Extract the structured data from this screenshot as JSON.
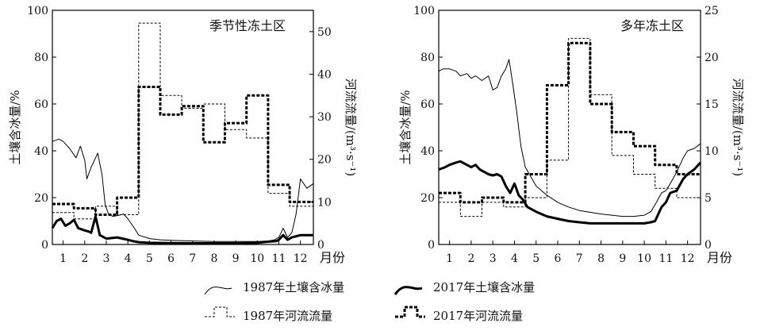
{
  "legend": [
    {
      "label": "1987年土壤含冰量",
      "style": "ice1987"
    },
    {
      "label": "2017年土壤含冰量",
      "style": "ice2017"
    },
    {
      "label": "1987年河流流量",
      "style": "flow1987"
    },
    {
      "label": "2017年河流流量",
      "style": "flow2017"
    }
  ],
  "styles": {
    "ice1987": {
      "color": "#000000",
      "width": 1,
      "dash": ""
    },
    "ice2017": {
      "color": "#000000",
      "width": 3,
      "dash": ""
    },
    "flow1987": {
      "color": "#000000",
      "width": 1,
      "dash": "3,2"
    },
    "flow2017": {
      "color": "#000000",
      "width": 3,
      "dash": "4,2"
    }
  },
  "chart_data": [
    {
      "type": "line",
      "title": "季节性冻土区",
      "xlabel": "月份",
      "ylabel_left": "土壤含冰量/%",
      "ylabel_right": "河流流量/(m³·s⁻¹)",
      "x_ticks": [
        "1",
        "2",
        "3",
        "4",
        "5",
        "6",
        "7",
        "8",
        "9",
        "10",
        "11",
        "12"
      ],
      "xlim": [
        0.5,
        12.6
      ],
      "ylim_left": [
        0,
        100
      ],
      "yticks_left": [
        0,
        20,
        40,
        60,
        80,
        100
      ],
      "ylim_right": [
        0,
        55
      ],
      "yticks_right": [
        0,
        10,
        20,
        30,
        40,
        50
      ],
      "series": [
        {
          "name": "1987年土壤含冰量",
          "axis": "left",
          "kind": "line",
          "style": "ice1987",
          "x": [
            0.5,
            0.8,
            1.0,
            1.3,
            1.6,
            1.8,
            2.0,
            2.1,
            2.3,
            2.4,
            2.6,
            2.8,
            2.95,
            3.1,
            3.3,
            3.6,
            3.8,
            4.0,
            4.3,
            4.5,
            5.0,
            5.5,
            6.0,
            7.0,
            8.0,
            9.0,
            10.0,
            10.5,
            10.8,
            11.0,
            11.2,
            11.4,
            11.6,
            11.8,
            12.0,
            12.3,
            12.6
          ],
          "y": [
            44,
            45,
            44,
            41,
            37,
            42,
            36,
            28,
            33,
            35,
            39,
            30,
            17,
            13,
            12,
            12.5,
            13,
            11,
            7,
            4,
            2.5,
            2,
            1.8,
            1.5,
            1.3,
            1.3,
            1.3,
            1.5,
            2,
            3,
            7,
            3,
            5,
            13,
            28,
            24,
            26
          ]
        },
        {
          "name": "2017年土壤含冰量",
          "axis": "left",
          "kind": "line",
          "style": "ice2017",
          "x": [
            0.5,
            0.7,
            0.9,
            1.1,
            1.3,
            1.5,
            1.7,
            2.0,
            2.2,
            2.3,
            2.5,
            2.7,
            3.0,
            3.5,
            4.0,
            4.2,
            4.5,
            5.0,
            6.0,
            7.0,
            8.0,
            9.0,
            10.0,
            10.5,
            10.9,
            11.0,
            11.2,
            11.4,
            11.6,
            11.8,
            12.0,
            12.6
          ],
          "y": [
            7,
            10,
            11,
            8,
            9,
            10.5,
            7,
            6,
            5.5,
            5,
            12,
            4,
            2.5,
            3,
            2,
            1.5,
            1,
            0.7,
            0.6,
            0.5,
            0.5,
            0.5,
            0.7,
            1.2,
            1.5,
            2,
            4,
            2,
            3,
            3.5,
            4,
            4
          ]
        },
        {
          "name": "1987年河流流量",
          "axis": "right",
          "kind": "step",
          "style": "flow1987",
          "edges": [
            0.5,
            1.5,
            2.5,
            3.5,
            4.5,
            5.5,
            6.5,
            7.5,
            8.5,
            9.5,
            10.5,
            11.5,
            12.6
          ],
          "values": [
            7.5,
            6,
            9,
            7,
            52,
            35,
            32,
            33,
            27,
            25,
            12,
            9
          ]
        },
        {
          "name": "2017年河流流量",
          "axis": "right",
          "kind": "step",
          "style": "flow2017",
          "edges": [
            0.5,
            1.5,
            2.5,
            3.5,
            4.5,
            5.5,
            6.5,
            7.5,
            8.5,
            9.5,
            10.5,
            11.5,
            12.6
          ],
          "values": [
            9.5,
            8.5,
            7,
            11,
            37,
            30.5,
            32.5,
            24,
            28.5,
            35,
            14,
            10
          ]
        }
      ]
    },
    {
      "type": "line",
      "title": "多年冻土区",
      "xlabel": "月份",
      "ylabel_left": "土壤含冰量/%",
      "ylabel_right": "河流流量/(m³·s⁻¹)",
      "x_ticks": [
        "1",
        "2",
        "3",
        "4",
        "5",
        "6",
        "7",
        "8",
        "9",
        "10",
        "11",
        "12"
      ],
      "xlim": [
        0.5,
        12.6
      ],
      "ylim_left": [
        0,
        100
      ],
      "yticks_left": [
        0,
        20,
        40,
        60,
        80,
        100
      ],
      "ylim_right": [
        0,
        25
      ],
      "yticks_right": [
        0,
        5,
        10,
        15,
        20,
        25
      ],
      "series": [
        {
          "name": "1987年土壤含冰量",
          "axis": "left",
          "kind": "line",
          "style": "ice1987",
          "x": [
            0.5,
            0.7,
            1.0,
            1.3,
            1.5,
            1.8,
            2.0,
            2.2,
            2.5,
            2.8,
            3.0,
            3.2,
            3.4,
            3.6,
            3.75,
            3.9,
            4.1,
            4.3,
            4.5,
            5.0,
            5.5,
            6.0,
            6.5,
            7.0,
            8.0,
            9.0,
            9.5,
            10.0,
            10.3,
            10.5,
            10.8,
            11.0,
            11.2,
            11.5,
            11.8,
            12.0,
            12.3,
            12.6
          ],
          "y": [
            74,
            75,
            75,
            74,
            72,
            73,
            71,
            72,
            70,
            72,
            66,
            67,
            72,
            75,
            79,
            70,
            57,
            42,
            33,
            25,
            21,
            18,
            16,
            14.5,
            13,
            12,
            12,
            12.5,
            14,
            17,
            22,
            23,
            26,
            31,
            37,
            40,
            41,
            43
          ]
        },
        {
          "name": "2017年土壤含冰量",
          "axis": "left",
          "kind": "line",
          "style": "ice2017",
          "x": [
            0.5,
            0.8,
            1.0,
            1.3,
            1.5,
            1.8,
            2.0,
            2.2,
            2.4,
            2.6,
            2.8,
            3.0,
            3.2,
            3.4,
            3.6,
            3.8,
            4.0,
            4.2,
            4.4,
            4.6,
            5.0,
            5.5,
            6.0,
            6.5,
            7.0,
            7.5,
            8.0,
            9.0,
            10.0,
            10.3,
            10.5,
            10.8,
            11.0,
            11.2,
            11.5,
            11.8,
            12.0,
            12.3,
            12.6
          ],
          "y": [
            32,
            33,
            34,
            35,
            35.5,
            34,
            33,
            34,
            32,
            31,
            30,
            29.5,
            30,
            29,
            25,
            22,
            26,
            21,
            19,
            16,
            14,
            12,
            11,
            10,
            9.5,
            9,
            9,
            9,
            9,
            9.5,
            10,
            16,
            18,
            22,
            23,
            28,
            30,
            32,
            35
          ]
        },
        {
          "name": "1987年河流流量",
          "axis": "right",
          "kind": "step",
          "style": "flow1987",
          "edges": [
            0.5,
            1.5,
            2.5,
            3.5,
            4.5,
            5.5,
            6.5,
            7.5,
            8.5,
            9.5,
            10.5,
            11.5,
            12.6
          ],
          "values": [
            4.5,
            3,
            4.5,
            4,
            5,
            9,
            22,
            16,
            9.5,
            7.5,
            6,
            5
          ]
        },
        {
          "name": "2017年河流流量",
          "axis": "right",
          "kind": "step",
          "style": "flow2017",
          "edges": [
            0.5,
            1.5,
            2.5,
            3.5,
            4.5,
            5.5,
            6.5,
            7.5,
            8.5,
            9.5,
            10.5,
            11.5,
            12.6
          ],
          "values": [
            5.5,
            4.5,
            5,
            4.5,
            7.5,
            17,
            21.5,
            15,
            12,
            10.5,
            8.5,
            7.5
          ]
        }
      ]
    }
  ]
}
